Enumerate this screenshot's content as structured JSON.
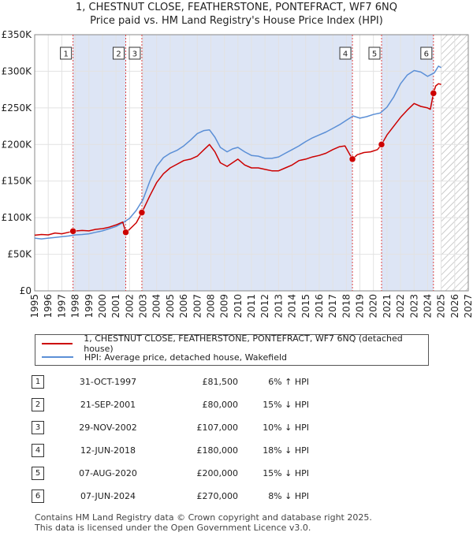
{
  "title_line1": "1, CHESTNUT CLOSE, FEATHERSTONE, PONTEFRACT, WF7 6NQ",
  "title_line2": "Price paid vs. HM Land Registry's House Price Index (HPI)",
  "colors": {
    "property": "#cc0000",
    "hpi": "#5b8fd6",
    "shade": "#dde5f5"
  },
  "chart_data": {
    "type": "line",
    "title": "Price paid vs. HM Land Registry's House Price Index (HPI)",
    "xlabel": "",
    "ylabel": "",
    "xlim": [
      1995,
      2027
    ],
    "ylim": [
      0,
      350000
    ],
    "x_ticks": [
      "1995",
      "1996",
      "1997",
      "1998",
      "1999",
      "2000",
      "2001",
      "2002",
      "2003",
      "2004",
      "2005",
      "2006",
      "2007",
      "2008",
      "2009",
      "2010",
      "2011",
      "2012",
      "2013",
      "2014",
      "2015",
      "2016",
      "2017",
      "2018",
      "2019",
      "2020",
      "2021",
      "2022",
      "2023",
      "2024",
      "2025",
      "2026",
      "2027"
    ],
    "y_ticks": [
      0,
      50000,
      100000,
      150000,
      200000,
      250000,
      300000,
      350000
    ],
    "y_tick_labels": [
      "£0",
      "£50K",
      "£100K",
      "£150K",
      "£200K",
      "£250K",
      "£300K",
      "£350K"
    ],
    "grid": true,
    "forecast_start": 2025.0,
    "series": [
      {
        "name": "1, CHESTNUT CLOSE, FEATHERSTONE, PONTEFRACT, WF7 6NQ (detached house)",
        "x": [
          1995.0,
          1995.5,
          1996.0,
          1996.5,
          1997.0,
          1997.5,
          1997.83,
          1998.5,
          1999.0,
          1999.5,
          2000.0,
          2000.5,
          2001.0,
          2001.5,
          2001.72,
          2002.0,
          2002.5,
          2002.91,
          2003.5,
          2004.0,
          2004.5,
          2005.0,
          2005.5,
          2006.0,
          2006.5,
          2007.0,
          2007.5,
          2007.9,
          2008.3,
          2008.7,
          2009.2,
          2009.6,
          2010.0,
          2010.5,
          2011.0,
          2011.5,
          2012.0,
          2012.5,
          2013.0,
          2013.5,
          2014.0,
          2014.5,
          2015.0,
          2015.5,
          2016.0,
          2016.5,
          2017.0,
          2017.5,
          2017.9,
          2018.45,
          2018.8,
          2019.3,
          2019.8,
          2020.3,
          2020.6,
          2021.0,
          2021.5,
          2022.0,
          2022.5,
          2023.0,
          2023.5,
          2024.0,
          2024.2,
          2024.43,
          2024.6,
          2024.8,
          2025.0
        ],
        "values": [
          76000,
          77000,
          76500,
          79000,
          78000,
          80000,
          81500,
          82500,
          82000,
          84000,
          85000,
          87000,
          90000,
          94000,
          80000,
          84000,
          93000,
          107000,
          130000,
          148000,
          160000,
          168000,
          173000,
          178000,
          180000,
          184000,
          193000,
          200000,
          190000,
          175000,
          170000,
          175000,
          180000,
          172000,
          168000,
          168000,
          166000,
          164000,
          164000,
          168000,
          172000,
          178000,
          180000,
          183000,
          185000,
          188000,
          193000,
          197000,
          198000,
          180000,
          186000,
          189000,
          190000,
          193000,
          200000,
          213000,
          225000,
          237000,
          247000,
          256000,
          252000,
          250000,
          248000,
          270000,
          280000,
          283000,
          282000
        ]
      },
      {
        "name": "HPI: Average price, detached house, Wakefield",
        "x": [
          1995.0,
          1995.5,
          1996.0,
          1996.5,
          1997.0,
          1997.5,
          1998.0,
          1998.5,
          1999.0,
          1999.5,
          2000.0,
          2000.5,
          2001.0,
          2001.5,
          2002.0,
          2002.5,
          2003.0,
          2003.5,
          2004.0,
          2004.5,
          2005.0,
          2005.5,
          2006.0,
          2006.5,
          2007.0,
          2007.5,
          2007.9,
          2008.3,
          2008.7,
          2009.2,
          2009.6,
          2010.0,
          2010.5,
          2011.0,
          2011.5,
          2012.0,
          2012.5,
          2013.0,
          2013.5,
          2014.0,
          2014.5,
          2015.0,
          2015.5,
          2016.0,
          2016.5,
          2017.0,
          2017.5,
          2018.0,
          2018.5,
          2019.0,
          2019.5,
          2020.0,
          2020.5,
          2021.0,
          2021.5,
          2022.0,
          2022.5,
          2023.0,
          2023.5,
          2024.0,
          2024.5,
          2024.8,
          2025.0
        ],
        "values": [
          72000,
          71000,
          72000,
          73000,
          74000,
          75000,
          76500,
          77000,
          78000,
          80000,
          82000,
          85000,
          88000,
          93000,
          99000,
          110000,
          125000,
          150000,
          170000,
          182000,
          188000,
          192000,
          198000,
          206000,
          215000,
          219000,
          220000,
          210000,
          196000,
          190000,
          194000,
          196000,
          190000,
          185000,
          184000,
          181000,
          181000,
          183000,
          188000,
          193000,
          198000,
          204000,
          209000,
          213000,
          217000,
          222000,
          227000,
          233000,
          239000,
          236000,
          238000,
          241000,
          243000,
          251000,
          265000,
          283000,
          295000,
          301000,
          299000,
          293000,
          298000,
          307000,
          305000
        ]
      }
    ],
    "transactions": [
      {
        "num": "1",
        "x": 1997.83,
        "value": 81500
      },
      {
        "num": "2",
        "x": 2001.72,
        "value": 80000
      },
      {
        "num": "3",
        "x": 2002.91,
        "value": 107000
      },
      {
        "num": "4",
        "x": 2018.45,
        "value": 180000
      },
      {
        "num": "5",
        "x": 2020.6,
        "value": 200000
      },
      {
        "num": "6",
        "x": 2024.43,
        "value": 270000
      }
    ]
  },
  "legend": {
    "property_label": "1, CHESTNUT CLOSE, FEATHERSTONE, PONTEFRACT, WF7 6NQ (detached house)",
    "hpi_label": "HPI: Average price, detached house, Wakefield"
  },
  "sales": [
    {
      "num": "1",
      "date": "31-OCT-1997",
      "price": "£81,500",
      "hpi": "6% ↑ HPI"
    },
    {
      "num": "2",
      "date": "21-SEP-2001",
      "price": "£80,000",
      "hpi": "15% ↓ HPI"
    },
    {
      "num": "3",
      "date": "29-NOV-2002",
      "price": "£107,000",
      "hpi": "10% ↓ HPI"
    },
    {
      "num": "4",
      "date": "12-JUN-2018",
      "price": "£180,000",
      "hpi": "18% ↓ HPI"
    },
    {
      "num": "5",
      "date": "07-AUG-2020",
      "price": "£200,000",
      "hpi": "15% ↓ HPI"
    },
    {
      "num": "6",
      "date": "07-JUN-2024",
      "price": "£270,000",
      "hpi": "8% ↓ HPI"
    }
  ],
  "footer_line1": "Contains HM Land Registry data © Crown copyright and database right 2025.",
  "footer_line2": "This data is licensed under the Open Government Licence v3.0."
}
